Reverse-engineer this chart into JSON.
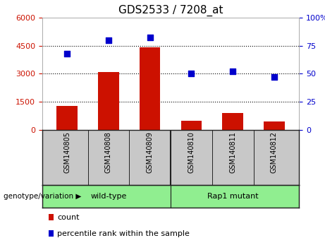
{
  "title": "GDS2533 / 7208_at",
  "samples": [
    "GSM140805",
    "GSM140808",
    "GSM140809",
    "GSM140810",
    "GSM140811",
    "GSM140812"
  ],
  "counts": [
    1300,
    3100,
    4400,
    500,
    900,
    450
  ],
  "percentiles": [
    68,
    80,
    82,
    50,
    52,
    47
  ],
  "bar_color": "#cc1100",
  "dot_color": "#0000cc",
  "left_axis_color": "#cc1100",
  "right_axis_color": "#0000cc",
  "ylim_left": [
    0,
    6000
  ],
  "ylim_right": [
    0,
    100
  ],
  "yticks_left": [
    0,
    1500,
    3000,
    4500,
    6000
  ],
  "yticks_right": [
    0,
    25,
    50,
    75,
    100
  ],
  "grid_yticks": [
    1500,
    3000,
    4500
  ],
  "background_color": "#ffffff",
  "group_bg": "#c8c8c8",
  "group_green": "#90ee90",
  "group_label": "genotype/variation",
  "wt_label": "wild-type",
  "rap_label": "Rap1 mutant",
  "legend_count_label": "count",
  "legend_percentile_label": "percentile rank within the sample",
  "title_fontsize": 11,
  "tick_fontsize": 8,
  "sample_fontsize": 7,
  "group_fontsize": 8,
  "legend_fontsize": 8
}
